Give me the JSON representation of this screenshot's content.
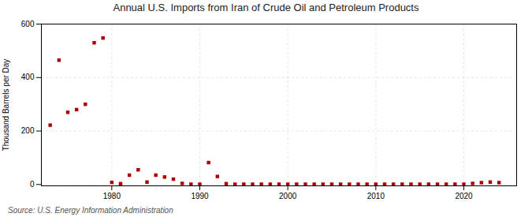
{
  "chart_data": {
    "type": "scatter",
    "title": "Annual U.S. Imports from Iran of Crude Oil and Petroleum Products",
    "ylabel": "Thousand Barrels per Day",
    "source": "Source: U.S. Energy Information Administration",
    "x": [
      1973,
      1974,
      1975,
      1976,
      1977,
      1978,
      1979,
      1980,
      1981,
      1982,
      1983,
      1984,
      1985,
      1986,
      1987,
      1988,
      1989,
      1990,
      1991,
      1992,
      1993,
      1994,
      1995,
      1996,
      1997,
      1998,
      1999,
      2000,
      2001,
      2002,
      2003,
      2004,
      2005,
      2006,
      2007,
      2008,
      2009,
      2010,
      2011,
      2012,
      2013,
      2014,
      2015,
      2016,
      2017,
      2018,
      2019,
      2020,
      2021,
      2022,
      2023,
      2024
    ],
    "values": [
      222,
      465,
      270,
      280,
      300,
      530,
      548,
      8,
      3,
      35,
      55,
      9,
      35,
      28,
      20,
      4,
      1,
      1,
      82,
      30,
      3,
      1,
      1,
      1,
      1,
      1,
      1,
      1,
      1,
      1,
      1,
      1,
      1,
      1,
      1,
      1,
      1,
      1,
      1,
      1,
      1,
      1,
      1,
      1,
      1,
      1,
      1,
      1,
      4,
      7,
      9,
      7
    ],
    "color": "#aa0000",
    "marker": "square",
    "grid": true,
    "xlim": [
      1972,
      2026
    ],
    "ylim": [
      -5,
      600
    ],
    "xticks": [
      1980,
      1990,
      2000,
      2010,
      2020
    ],
    "yticks": [
      0,
      200,
      400,
      600
    ]
  }
}
